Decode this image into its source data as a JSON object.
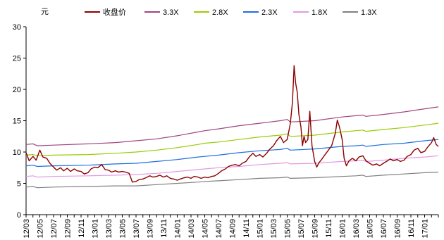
{
  "chart_data": {
    "type": "line",
    "y_unit_label": "元",
    "ylim": [
      0,
      30
    ],
    "y_ticks": [
      0,
      5,
      10,
      15,
      20,
      25,
      30
    ],
    "x_tick_labels": [
      "12/03",
      "12/05",
      "12/07",
      "12/09",
      "12/11",
      "13/01",
      "13/03",
      "13/05",
      "13/07",
      "13/09",
      "13/11",
      "14/01",
      "14/03",
      "14/05",
      "14/07",
      "14/09",
      "14/11",
      "15/01",
      "15/03",
      "15/05",
      "15/07",
      "15/09",
      "15/11",
      "16/01",
      "16/03",
      "16/05",
      "16/07",
      "16/09",
      "16/11",
      "17/01"
    ],
    "x_start": "2012-03",
    "x_end": "2017-03",
    "grid": false,
    "legend_position": "top",
    "series": [
      {
        "name": "收盘价",
        "color": "#8B0000",
        "values": [
          [
            "2012-03-01",
            9.9
          ],
          [
            "2012-03-15",
            8.6
          ],
          [
            "2012-04-01",
            9.3
          ],
          [
            "2012-04-15",
            8.7
          ],
          [
            "2012-05-01",
            10.3
          ],
          [
            "2012-05-15",
            9.2
          ],
          [
            "2012-06-01",
            9.0
          ],
          [
            "2012-06-15",
            8.2
          ],
          [
            "2012-07-01",
            7.6
          ],
          [
            "2012-07-15",
            7.1
          ],
          [
            "2012-08-01",
            7.5
          ],
          [
            "2012-08-15",
            7.0
          ],
          [
            "2012-09-01",
            7.4
          ],
          [
            "2012-09-15",
            6.9
          ],
          [
            "2012-10-01",
            7.3
          ],
          [
            "2012-10-15",
            7.0
          ],
          [
            "2012-11-01",
            6.9
          ],
          [
            "2012-11-15",
            6.5
          ],
          [
            "2012-12-01",
            6.7
          ],
          [
            "2012-12-15",
            7.3
          ],
          [
            "2013-01-01",
            7.6
          ],
          [
            "2013-01-15",
            7.5
          ],
          [
            "2013-02-01",
            8.0
          ],
          [
            "2013-02-15",
            7.2
          ],
          [
            "2013-03-01",
            7.1
          ],
          [
            "2013-03-15",
            6.8
          ],
          [
            "2013-04-01",
            7.0
          ],
          [
            "2013-04-15",
            6.8
          ],
          [
            "2013-05-01",
            6.9
          ],
          [
            "2013-05-15",
            6.8
          ],
          [
            "2013-06-01",
            6.6
          ],
          [
            "2013-06-15",
            5.2
          ],
          [
            "2013-07-01",
            5.3
          ],
          [
            "2013-07-15",
            5.6
          ],
          [
            "2013-08-01",
            5.7
          ],
          [
            "2013-08-15",
            5.9
          ],
          [
            "2013-09-01",
            6.2
          ],
          [
            "2013-09-15",
            6.0
          ],
          [
            "2013-10-01",
            6.1
          ],
          [
            "2013-10-15",
            6.3
          ],
          [
            "2013-11-01",
            6.0
          ],
          [
            "2013-11-15",
            6.2
          ],
          [
            "2013-12-01",
            5.8
          ],
          [
            "2013-12-15",
            5.7
          ],
          [
            "2014-01-01",
            5.5
          ],
          [
            "2014-01-15",
            5.7
          ],
          [
            "2014-02-01",
            5.9
          ],
          [
            "2014-02-15",
            6.0
          ],
          [
            "2014-03-01",
            5.8
          ],
          [
            "2014-03-15",
            6.1
          ],
          [
            "2014-04-01",
            6.0
          ],
          [
            "2014-04-15",
            5.8
          ],
          [
            "2014-05-01",
            6.0
          ],
          [
            "2014-05-15",
            5.9
          ],
          [
            "2014-06-01",
            6.1
          ],
          [
            "2014-06-15",
            6.2
          ],
          [
            "2014-07-01",
            6.6
          ],
          [
            "2014-07-15",
            7.0
          ],
          [
            "2014-08-01",
            7.3
          ],
          [
            "2014-08-15",
            7.7
          ],
          [
            "2014-09-01",
            7.9
          ],
          [
            "2014-09-15",
            8.0
          ],
          [
            "2014-10-01",
            7.8
          ],
          [
            "2014-10-15",
            8.2
          ],
          [
            "2014-11-01",
            8.5
          ],
          [
            "2014-11-15",
            9.2
          ],
          [
            "2014-12-01",
            9.8
          ],
          [
            "2014-12-15",
            9.3
          ],
          [
            "2015-01-01",
            9.6
          ],
          [
            "2015-01-15",
            9.2
          ],
          [
            "2015-02-01",
            9.8
          ],
          [
            "2015-02-15",
            10.5
          ],
          [
            "2015-03-01",
            11.0
          ],
          [
            "2015-03-15",
            11.8
          ],
          [
            "2015-04-01",
            12.5
          ],
          [
            "2015-04-15",
            11.5
          ],
          [
            "2015-05-01",
            12.0
          ],
          [
            "2015-05-15",
            14.5
          ],
          [
            "2015-05-25",
            18.0
          ],
          [
            "2015-06-01",
            23.8
          ],
          [
            "2015-06-08",
            21.0
          ],
          [
            "2015-06-15",
            19.5
          ],
          [
            "2015-06-22",
            16.0
          ],
          [
            "2015-07-01",
            14.0
          ],
          [
            "2015-07-08",
            11.0
          ],
          [
            "2015-07-15",
            12.5
          ],
          [
            "2015-07-22",
            11.5
          ],
          [
            "2015-08-01",
            12.0
          ],
          [
            "2015-08-10",
            16.5
          ],
          [
            "2015-08-20",
            11.0
          ],
          [
            "2015-09-01",
            8.5
          ],
          [
            "2015-09-10",
            7.6
          ],
          [
            "2015-09-20",
            8.3
          ],
          [
            "2015-10-01",
            8.8
          ],
          [
            "2015-10-15",
            9.5
          ],
          [
            "2015-11-01",
            10.3
          ],
          [
            "2015-11-15",
            11.0
          ],
          [
            "2015-12-01",
            13.0
          ],
          [
            "2015-12-10",
            15.1
          ],
          [
            "2015-12-20",
            14.0
          ],
          [
            "2016-01-01",
            12.0
          ],
          [
            "2016-01-10",
            9.0
          ],
          [
            "2016-01-20",
            7.8
          ],
          [
            "2016-02-01",
            8.6
          ],
          [
            "2016-02-15",
            9.0
          ],
          [
            "2016-03-01",
            8.6
          ],
          [
            "2016-03-15",
            9.2
          ],
          [
            "2016-04-01",
            9.4
          ],
          [
            "2016-04-15",
            8.6
          ],
          [
            "2016-05-01",
            8.2
          ],
          [
            "2016-05-15",
            7.9
          ],
          [
            "2016-06-01",
            8.1
          ],
          [
            "2016-06-15",
            7.8
          ],
          [
            "2016-07-01",
            8.2
          ],
          [
            "2016-07-15",
            8.5
          ],
          [
            "2016-08-01",
            8.9
          ],
          [
            "2016-08-15",
            8.6
          ],
          [
            "2016-09-01",
            8.8
          ],
          [
            "2016-09-15",
            8.5
          ],
          [
            "2016-10-01",
            8.7
          ],
          [
            "2016-10-15",
            9.3
          ],
          [
            "2016-11-01",
            9.6
          ],
          [
            "2016-11-15",
            10.3
          ],
          [
            "2016-12-01",
            10.6
          ],
          [
            "2016-12-15",
            9.9
          ],
          [
            "2017-01-01",
            10.1
          ],
          [
            "2017-01-15",
            10.8
          ],
          [
            "2017-02-01",
            11.5
          ],
          [
            "2017-02-10",
            12.3
          ],
          [
            "2017-02-20",
            11.2
          ],
          [
            "2017-03-01",
            10.9
          ]
        ]
      },
      {
        "name": "3.3X",
        "color": "#A0457F",
        "values": [
          [
            "2012-03-01",
            11.2
          ],
          [
            "2012-04-01",
            11.3
          ],
          [
            "2012-04-20",
            11.0
          ],
          [
            "2012-07-01",
            11.1
          ],
          [
            "2012-12-01",
            11.3
          ],
          [
            "2013-04-01",
            11.5
          ],
          [
            "2013-07-01",
            11.8
          ],
          [
            "2013-10-01",
            12.1
          ],
          [
            "2014-01-01",
            12.6
          ],
          [
            "2014-04-01",
            13.2
          ],
          [
            "2014-05-01",
            13.4
          ],
          [
            "2014-07-01",
            13.7
          ],
          [
            "2014-10-01",
            14.2
          ],
          [
            "2015-01-01",
            14.6
          ],
          [
            "2015-04-01",
            15.0
          ],
          [
            "2015-05-01",
            15.2
          ],
          [
            "2015-05-15",
            14.8
          ],
          [
            "2015-09-01",
            15.0
          ],
          [
            "2016-01-01",
            15.6
          ],
          [
            "2016-03-01",
            15.8
          ],
          [
            "2016-04-01",
            15.9
          ],
          [
            "2016-04-15",
            15.7
          ],
          [
            "2016-07-01",
            16.0
          ],
          [
            "2016-10-01",
            16.4
          ],
          [
            "2017-01-01",
            16.9
          ],
          [
            "2017-03-01",
            17.2
          ]
        ]
      },
      {
        "name": "2.8X",
        "color": "#99CC00",
        "values": [
          [
            "2012-03-01",
            9.5
          ],
          [
            "2012-04-01",
            9.6
          ],
          [
            "2012-04-20",
            9.4
          ],
          [
            "2012-07-01",
            9.5
          ],
          [
            "2012-12-01",
            9.6
          ],
          [
            "2013-04-01",
            9.8
          ],
          [
            "2013-07-01",
            10.0
          ],
          [
            "2013-10-01",
            10.3
          ],
          [
            "2014-01-01",
            10.7
          ],
          [
            "2014-04-01",
            11.2
          ],
          [
            "2014-05-01",
            11.4
          ],
          [
            "2014-07-01",
            11.6
          ],
          [
            "2014-10-01",
            12.0
          ],
          [
            "2015-01-01",
            12.4
          ],
          [
            "2015-04-01",
            12.7
          ],
          [
            "2015-05-01",
            12.9
          ],
          [
            "2015-05-15",
            12.5
          ],
          [
            "2015-09-01",
            12.7
          ],
          [
            "2016-01-01",
            13.2
          ],
          [
            "2016-03-01",
            13.4
          ],
          [
            "2016-04-01",
            13.5
          ],
          [
            "2016-04-15",
            13.3
          ],
          [
            "2016-07-01",
            13.6
          ],
          [
            "2016-10-01",
            13.9
          ],
          [
            "2017-01-01",
            14.3
          ],
          [
            "2017-03-01",
            14.6
          ]
        ]
      },
      {
        "name": "2.3X",
        "color": "#1F6FE0",
        "values": [
          [
            "2012-03-01",
            7.8
          ],
          [
            "2012-04-01",
            7.9
          ],
          [
            "2012-04-20",
            7.7
          ],
          [
            "2012-07-01",
            7.8
          ],
          [
            "2012-12-01",
            7.9
          ],
          [
            "2013-04-01",
            8.1
          ],
          [
            "2013-07-01",
            8.2
          ],
          [
            "2013-10-01",
            8.5
          ],
          [
            "2014-01-01",
            8.8
          ],
          [
            "2014-04-01",
            9.2
          ],
          [
            "2014-05-01",
            9.3
          ],
          [
            "2014-07-01",
            9.5
          ],
          [
            "2014-10-01",
            9.9
          ],
          [
            "2015-01-01",
            10.2
          ],
          [
            "2015-04-01",
            10.4
          ],
          [
            "2015-05-01",
            10.6
          ],
          [
            "2015-05-15",
            10.3
          ],
          [
            "2015-09-01",
            10.5
          ],
          [
            "2016-01-01",
            10.9
          ],
          [
            "2016-03-01",
            11.0
          ],
          [
            "2016-04-01",
            11.1
          ],
          [
            "2016-04-15",
            10.9
          ],
          [
            "2016-07-01",
            11.2
          ],
          [
            "2016-10-01",
            11.4
          ],
          [
            "2017-01-01",
            11.8
          ],
          [
            "2017-03-01",
            12.0
          ]
        ]
      },
      {
        "name": "1.8X",
        "color": "#E399E3",
        "values": [
          [
            "2012-03-01",
            6.1
          ],
          [
            "2012-04-01",
            6.2
          ],
          [
            "2012-04-20",
            6.0
          ],
          [
            "2012-07-01",
            6.1
          ],
          [
            "2012-12-01",
            6.2
          ],
          [
            "2013-04-01",
            6.3
          ],
          [
            "2013-07-01",
            6.4
          ],
          [
            "2013-10-01",
            6.6
          ],
          [
            "2014-01-01",
            6.9
          ],
          [
            "2014-04-01",
            7.2
          ],
          [
            "2014-05-01",
            7.3
          ],
          [
            "2014-07-01",
            7.5
          ],
          [
            "2014-10-01",
            7.7
          ],
          [
            "2015-01-01",
            8.0
          ],
          [
            "2015-04-01",
            8.2
          ],
          [
            "2015-05-01",
            8.3
          ],
          [
            "2015-05-15",
            8.1
          ],
          [
            "2015-09-01",
            8.2
          ],
          [
            "2016-01-01",
            8.5
          ],
          [
            "2016-03-01",
            8.6
          ],
          [
            "2016-04-01",
            8.7
          ],
          [
            "2016-04-15",
            8.5
          ],
          [
            "2016-07-01",
            8.7
          ],
          [
            "2016-10-01",
            9.0
          ],
          [
            "2017-01-01",
            9.2
          ],
          [
            "2017-03-01",
            9.4
          ]
        ]
      },
      {
        "name": "1.3X",
        "color": "#808080",
        "values": [
          [
            "2012-03-01",
            4.4
          ],
          [
            "2012-04-01",
            4.5
          ],
          [
            "2012-04-20",
            4.3
          ],
          [
            "2012-07-01",
            4.4
          ],
          [
            "2012-12-01",
            4.5
          ],
          [
            "2013-04-01",
            4.6
          ],
          [
            "2013-07-01",
            4.6
          ],
          [
            "2013-10-01",
            4.8
          ],
          [
            "2014-01-01",
            5.0
          ],
          [
            "2014-04-01",
            5.2
          ],
          [
            "2014-05-01",
            5.3
          ],
          [
            "2014-07-01",
            5.4
          ],
          [
            "2014-10-01",
            5.6
          ],
          [
            "2015-01-01",
            5.8
          ],
          [
            "2015-04-01",
            5.9
          ],
          [
            "2015-05-01",
            6.0
          ],
          [
            "2015-05-15",
            5.8
          ],
          [
            "2015-09-01",
            5.9
          ],
          [
            "2016-01-01",
            6.1
          ],
          [
            "2016-03-01",
            6.2
          ],
          [
            "2016-04-01",
            6.3
          ],
          [
            "2016-04-15",
            6.1
          ],
          [
            "2016-07-01",
            6.3
          ],
          [
            "2016-10-01",
            6.5
          ],
          [
            "2017-01-01",
            6.7
          ],
          [
            "2017-03-01",
            6.8
          ]
        ]
      }
    ]
  }
}
